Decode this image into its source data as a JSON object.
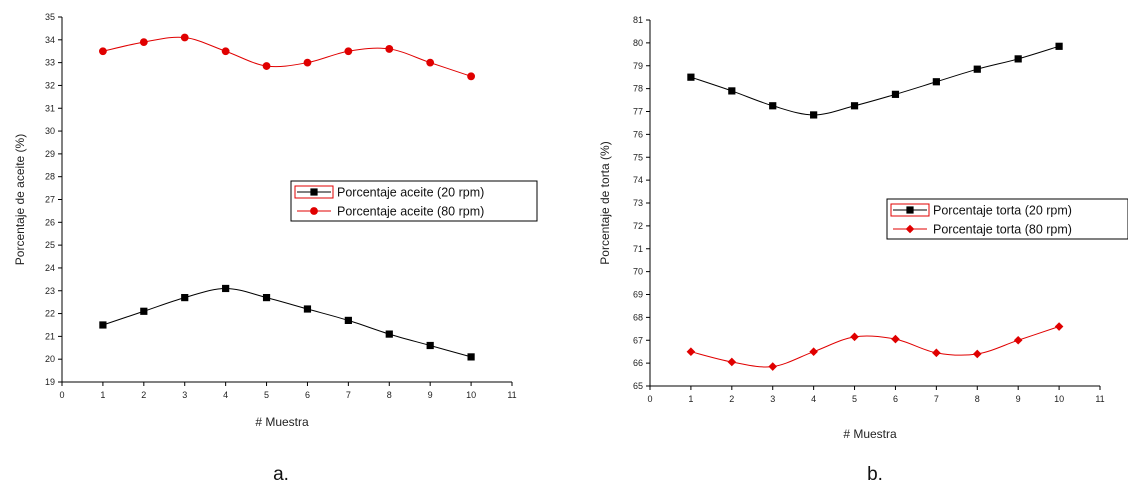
{
  "chart_data": [
    {
      "type": "line",
      "panel_caption": "a.",
      "title": "",
      "xlabel": "# Muestra",
      "ylabel": "Porcentaje de aceite (%)",
      "xlim": [
        0,
        11
      ],
      "ylim": [
        19,
        35
      ],
      "xticks": [
        0,
        1,
        2,
        3,
        4,
        5,
        6,
        7,
        8,
        9,
        10,
        11
      ],
      "yticks": [
        19,
        20,
        21,
        22,
        23,
        24,
        25,
        26,
        27,
        28,
        29,
        30,
        31,
        32,
        33,
        34,
        35
      ],
      "grid": false,
      "legend_position": "center-right",
      "x": [
        1,
        2,
        3,
        4,
        5,
        6,
        7,
        8,
        9,
        10
      ],
      "series": [
        {
          "name": "Porcentaje aceite (20 rpm)",
          "marker": "square",
          "color": "#000000",
          "line_color": "#000000",
          "values": [
            21.5,
            22.1,
            22.7,
            23.1,
            22.7,
            22.2,
            21.7,
            21.1,
            20.6,
            20.1
          ]
        },
        {
          "name": "Porcentaje aceite (80 rpm)",
          "marker": "circle",
          "color": "#e00000",
          "line_color": "#e00000",
          "values": [
            33.5,
            33.9,
            34.1,
            33.5,
            32.85,
            33.0,
            33.5,
            33.6,
            33.0,
            32.4
          ]
        }
      ]
    },
    {
      "type": "line",
      "panel_caption": "b.",
      "title": "",
      "xlabel": "# Muestra",
      "ylabel": "Porcentaje de torta (%)",
      "xlim": [
        0,
        11
      ],
      "ylim": [
        65,
        81
      ],
      "xticks": [
        0,
        1,
        2,
        3,
        4,
        5,
        6,
        7,
        8,
        9,
        10,
        11
      ],
      "yticks": [
        65,
        66,
        67,
        68,
        69,
        70,
        71,
        72,
        73,
        74,
        75,
        76,
        77,
        78,
        79,
        80,
        81
      ],
      "grid": false,
      "legend_position": "center-right",
      "x": [
        1,
        2,
        3,
        4,
        5,
        6,
        7,
        8,
        9,
        10
      ],
      "series": [
        {
          "name": "Porcentaje torta (20 rpm)",
          "marker": "square",
          "color": "#000000",
          "line_color": "#000000",
          "values": [
            78.5,
            77.9,
            77.25,
            76.85,
            77.25,
            77.75,
            78.3,
            78.85,
            79.3,
            79.85
          ]
        },
        {
          "name": "Porcentaje torta (80 rpm)",
          "marker": "diamond",
          "color": "#e00000",
          "line_color": "#e00000",
          "values": [
            66.5,
            66.05,
            65.85,
            66.5,
            67.15,
            67.05,
            66.45,
            66.4,
            67.0,
            67.6
          ]
        }
      ]
    }
  ]
}
